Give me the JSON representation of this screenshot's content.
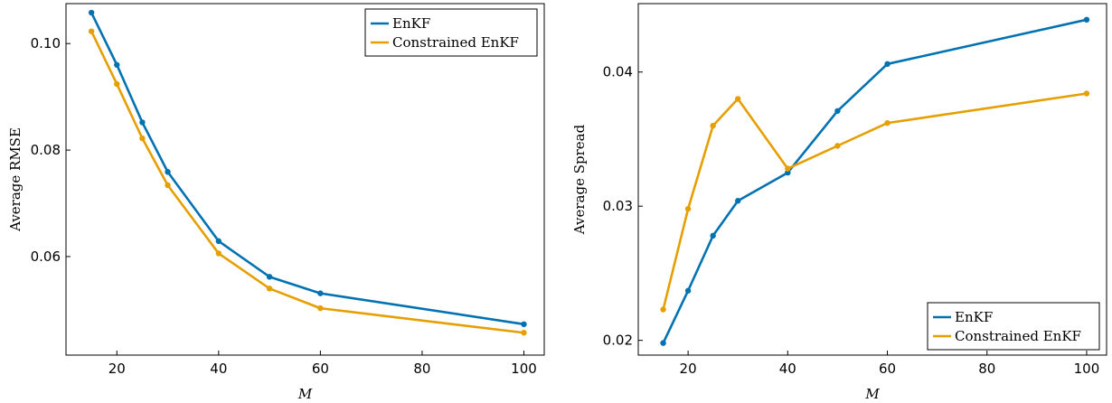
{
  "chart_data": [
    {
      "type": "line",
      "xlabel": "M",
      "ylabel": "Average RMSE",
      "xlim": [
        10,
        104
      ],
      "ylim": [
        0.0415,
        0.1075
      ],
      "xticks": [
        20,
        40,
        60,
        80,
        100
      ],
      "xtick_labels": [
        "20",
        "40",
        "60",
        "80",
        "100"
      ],
      "yticks": [
        0.06,
        0.08,
        0.1
      ],
      "ytick_labels": [
        "0.06",
        "0.08",
        "0.10"
      ],
      "grid": false,
      "legend_position": "top-right",
      "x": [
        15,
        20,
        25,
        30,
        40,
        50,
        60,
        100
      ],
      "series": [
        {
          "name": "EnKF",
          "color": "#0072b2",
          "values": [
            0.1058,
            0.096,
            0.0852,
            0.0759,
            0.0629,
            0.0562,
            0.0531,
            0.0473
          ]
        },
        {
          "name": "Constrained EnKF",
          "color": "#e69f00",
          "values": [
            0.1023,
            0.0924,
            0.0822,
            0.0734,
            0.0606,
            0.054,
            0.0503,
            0.0457
          ]
        }
      ]
    },
    {
      "type": "line",
      "xlabel": "M",
      "ylabel": "Average Spread",
      "xlim": [
        10,
        104
      ],
      "ylim": [
        0.0189,
        0.0451
      ],
      "xticks": [
        20,
        40,
        60,
        80,
        100
      ],
      "xtick_labels": [
        "20",
        "40",
        "60",
        "80",
        "100"
      ],
      "yticks": [
        0.02,
        0.03,
        0.04
      ],
      "ytick_labels": [
        "0.02",
        "0.03",
        "0.04"
      ],
      "grid": false,
      "legend_position": "bottom-right",
      "x": [
        15,
        20,
        25,
        30,
        40,
        50,
        60,
        100
      ],
      "series": [
        {
          "name": "EnKF",
          "color": "#0072b2",
          "values": [
            0.0198,
            0.0237,
            0.0278,
            0.0304,
            0.0325,
            0.0371,
            0.0406,
            0.0439
          ]
        },
        {
          "name": "Constrained EnKF",
          "color": "#e69f00",
          "values": [
            0.0223,
            0.0298,
            0.036,
            0.038,
            0.0328,
            0.0345,
            0.0362,
            0.0384
          ]
        }
      ]
    }
  ]
}
